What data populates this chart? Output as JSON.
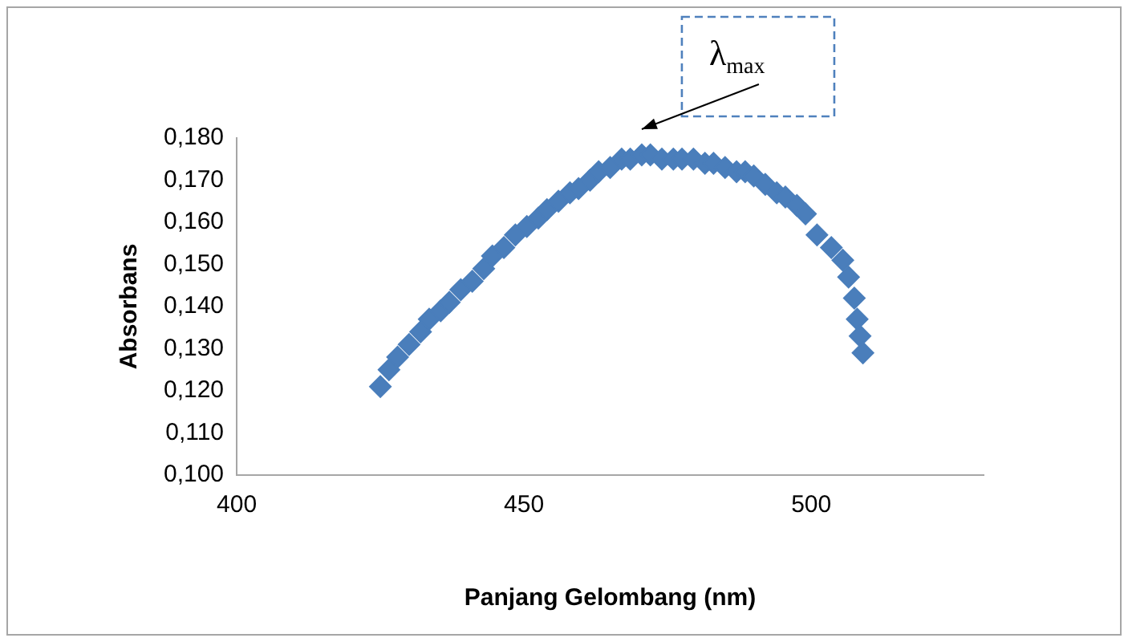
{
  "chart_data": {
    "type": "scatter",
    "xlabel": "Panjang Gelombang (nm)",
    "ylabel": "Absorbans",
    "marker": "diamond",
    "grid": false,
    "legend": false,
    "xlim": [
      400,
      530
    ],
    "xticks": [
      400,
      450,
      500
    ],
    "ylim": [
      0.1,
      0.18
    ],
    "yticks": [
      {
        "value": 0.1,
        "label": "0,100"
      },
      {
        "value": 0.11,
        "label": "0,110"
      },
      {
        "value": 0.12,
        "label": "0,120"
      },
      {
        "value": 0.13,
        "label": "0,130"
      },
      {
        "value": 0.14,
        "label": "0,140"
      },
      {
        "value": 0.15,
        "label": "0,150"
      },
      {
        "value": 0.16,
        "label": "0,160"
      },
      {
        "value": 0.17,
        "label": "0,170"
      },
      {
        "value": 0.18,
        "label": "0,180"
      }
    ],
    "annotations": [
      {
        "text": "λ$_{max}$",
        "x": 470.5,
        "y": 0.176
      }
    ],
    "series": [
      {
        "color": "#4a7ebb",
        "x": [
          425,
          426.5,
          428,
          430,
          432,
          433.5,
          435.5,
          437,
          439,
          441,
          443,
          444.5,
          446.5,
          448.5,
          450.5,
          452.5,
          454,
          456,
          458,
          459.5,
          461.5,
          463,
          465,
          467,
          468.5,
          470.5,
          472,
          474,
          476,
          477.5,
          479.5,
          481.5,
          483,
          485,
          487,
          488.5,
          490,
          492,
          494,
          495.5,
          497.5,
          499,
          501,
          503.5,
          505.5,
          506.5,
          507.5,
          508,
          508.5,
          509
        ],
        "values": [
          0.121,
          0.125,
          0.128,
          0.131,
          0.134,
          0.137,
          0.139,
          0.141,
          0.144,
          0.146,
          0.149,
          0.152,
          0.154,
          0.157,
          0.159,
          0.161,
          0.163,
          0.165,
          0.167,
          0.168,
          0.17,
          0.172,
          0.173,
          0.175,
          0.175,
          0.176,
          0.176,
          0.175,
          0.175,
          0.175,
          0.175,
          0.174,
          0.174,
          0.173,
          0.172,
          0.172,
          0.171,
          0.169,
          0.167,
          0.166,
          0.164,
          0.162,
          0.157,
          0.154,
          0.151,
          0.147,
          0.142,
          0.137,
          0.133,
          0.129
        ]
      }
    ]
  }
}
